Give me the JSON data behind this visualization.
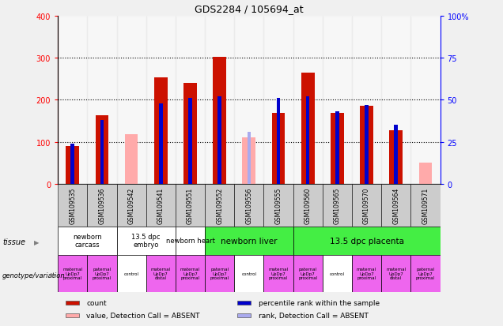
{
  "title": "GDS2284 / 105694_at",
  "samples": [
    "GSM109535",
    "GSM109536",
    "GSM109542",
    "GSM109541",
    "GSM109551",
    "GSM109552",
    "GSM109556",
    "GSM109555",
    "GSM109560",
    "GSM109565",
    "GSM109570",
    "GSM109564",
    "GSM109571"
  ],
  "count": [
    90,
    163,
    null,
    253,
    240,
    302,
    null,
    168,
    265,
    168,
    185,
    128,
    null
  ],
  "count_absent": [
    null,
    null,
    118,
    null,
    null,
    null,
    110,
    null,
    null,
    null,
    null,
    null,
    50
  ],
  "percentile": [
    24,
    38,
    null,
    48,
    51,
    52,
    null,
    51,
    52,
    43,
    47,
    35,
    null
  ],
  "percentile_absent": [
    null,
    null,
    null,
    null,
    null,
    null,
    31,
    null,
    null,
    null,
    null,
    null,
    null
  ],
  "is_absent_count": [
    false,
    false,
    true,
    false,
    false,
    false,
    true,
    false,
    false,
    false,
    false,
    false,
    true
  ],
  "is_absent_rank": [
    false,
    false,
    false,
    false,
    false,
    false,
    true,
    false,
    false,
    false,
    false,
    false,
    false
  ],
  "tissue_groups": [
    {
      "label": "newborn\ncarcass",
      "start": 0,
      "end": 2,
      "color": "#ffffff"
    },
    {
      "label": "13.5 dpc\nembryo",
      "start": 2,
      "end": 4,
      "color": "#ffffff"
    },
    {
      "label": "newborn heart",
      "start": 4,
      "end": 5,
      "color": "#ffffff"
    },
    {
      "label": "newborn liver",
      "start": 5,
      "end": 8,
      "color": "#44ee44"
    },
    {
      "label": "13.5 dpc placenta",
      "start": 8,
      "end": 13,
      "color": "#44ee44"
    }
  ],
  "genotype_labels": [
    "maternal\nUpDp7\nproximal",
    "paternal\nUpDp7\nproximal",
    "control",
    "maternal\nUpDp7\ndistal",
    "maternal\nUpDp7\nproximal",
    "paternal\nUpDp7\nproximal",
    "control",
    "maternal\nUpDp7\nproximal",
    "paternal\nUpDp7\nproximal",
    "control",
    "maternal\nUpDp7\nproximal",
    "maternal\nUpDp7\ndistal",
    "paternal\nUpDp7\nproximal"
  ],
  "genotype_colors": [
    "#ee66ee",
    "#ee66ee",
    "#ffffff",
    "#ee66ee",
    "#ee66ee",
    "#ee66ee",
    "#ffffff",
    "#ee66ee",
    "#ee66ee",
    "#ffffff",
    "#ee66ee",
    "#ee66ee",
    "#ee66ee"
  ],
  "bar_color_red": "#cc1100",
  "bar_color_blue": "#0000cc",
  "bar_color_pink": "#ffaaaa",
  "bar_color_lightblue": "#aaaaee",
  "ylim_left": [
    0,
    400
  ],
  "ylim_right": [
    0,
    100
  ],
  "yticks_left": [
    0,
    100,
    200,
    300,
    400
  ],
  "yticks_right": [
    0,
    25,
    50,
    75,
    100
  ],
  "yticklabels_right": [
    "0",
    "25",
    "50",
    "75",
    "100%"
  ],
  "bg_color": "#cccccc",
  "plot_bg": "#ffffff",
  "fig_bg": "#f0f0f0"
}
